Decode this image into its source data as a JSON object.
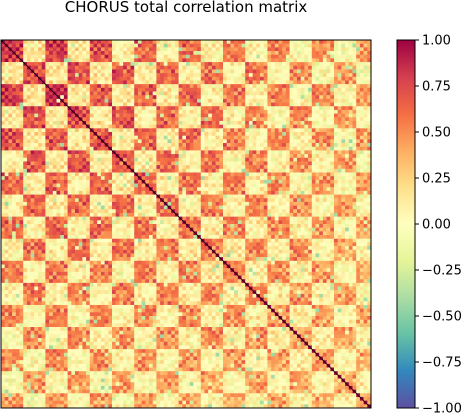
{
  "chart_data": {
    "type": "heatmap",
    "title": "CHORUS total correlation matrix",
    "xlabel": "",
    "ylabel": "",
    "colormap": "Spectral_r",
    "value_range": [
      -1.0,
      1.0
    ],
    "colorbar": {
      "ticks": [
        1.0,
        0.75,
        0.5,
        0.25,
        0.0,
        -0.25,
        -0.5,
        -0.75,
        -1.0
      ],
      "tick_labels": [
        "1.00",
        "0.75",
        "0.50",
        "0.25",
        "0.00",
        "−0.25",
        "−0.50",
        "−0.75",
        "−1.00"
      ],
      "placement": "right"
    },
    "matrix_size_approx": 100,
    "diagonal_value": 1.0,
    "pattern": {
      "block_structure": "checkerboard of alternating strong and weak positive correlation blocks",
      "strong_block_value_approx": 0.8,
      "weak_block_value_approx": 0.15,
      "strongest_region": "upper-left (low indices)",
      "weakest_region": "lower-right (high indices)",
      "min_observed_approx": -0.45
    },
    "axes_ticks_visible": false
  },
  "colors": {
    "spectral_r_stops": [
      "#5e4fa2",
      "#3288bd",
      "#66c2a5",
      "#abdda4",
      "#e6f598",
      "#ffffbf",
      "#fee08b",
      "#fdae61",
      "#f46d43",
      "#d53e4f",
      "#9e0142"
    ],
    "frame": "#000000",
    "background": "#ffffff"
  }
}
